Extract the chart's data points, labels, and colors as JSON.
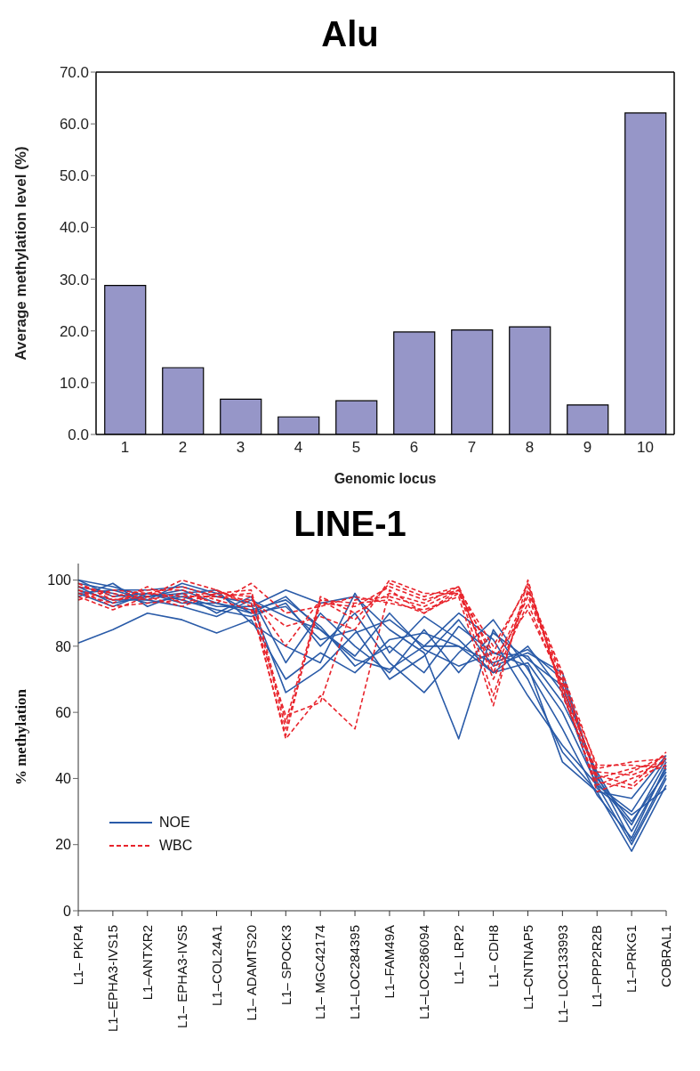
{
  "chart_data": [
    {
      "type": "bar",
      "title": "Alu",
      "xlabel": "Genomic locus",
      "ylabel": "Average methylation level (%)",
      "categories": [
        "1",
        "2",
        "3",
        "4",
        "5",
        "6",
        "7",
        "8",
        "9",
        "10"
      ],
      "values": [
        28.8,
        12.9,
        6.8,
        3.4,
        6.5,
        19.8,
        20.2,
        20.8,
        5.7,
        62.1
      ],
      "color": "#9696c8",
      "ylim": [
        0,
        70
      ],
      "yticks": [
        {
          "value": 0,
          "label": "0.0"
        },
        {
          "value": 10,
          "label": "10.0"
        },
        {
          "value": 20,
          "label": "20.0"
        },
        {
          "value": 30,
          "label": "30.0"
        },
        {
          "value": 40,
          "label": "40.0"
        },
        {
          "value": 50,
          "label": "50.0"
        },
        {
          "value": 60,
          "label": "60.0"
        },
        {
          "value": 70,
          "label": "70.0"
        }
      ]
    },
    {
      "type": "line",
      "title": "LINE-1",
      "ylabel": "% methylation",
      "categories": [
        "L1– PKP4",
        "L1–EPHA3-IVS15",
        "L1–ANTXR2",
        "L1– EPHA3-IVS5",
        "L1–COL24A1",
        "L1– ADAMTS20",
        "L1– SPOCK3",
        "L1– MGC42174",
        "L1–LOC284395",
        "L1–FAM49A",
        "L1–LOC286094",
        "L1– LRP2",
        "L1– CDH8",
        "L1–CNTNAP5",
        "L1– LOC133993",
        "L1–PPP2R2B",
        "L1–PRKG1",
        "COBRAL1"
      ],
      "ylim": [
        0,
        105
      ],
      "yticks": [
        0,
        20,
        40,
        60,
        80,
        100
      ],
      "legend": "bottom left",
      "series": [
        {
          "name": "NOE",
          "color": "#2a5ba8",
          "line_style": "solid",
          "values": [
            100,
            98,
            95,
            97,
            93,
            90,
            95,
            85,
            76,
            73,
            80,
            80,
            72,
            75,
            60,
            38,
            20,
            40
          ]
        },
        {
          "color": "#2a5ba8",
          "line_style": "solid",
          "values": [
            98,
            96,
            93,
            95,
            92,
            92,
            97,
            93,
            95,
            85,
            78,
            52,
            85,
            70,
            48,
            36,
            18,
            38
          ]
        },
        {
          "color": "#2a5ba8",
          "line_style": "solid",
          "values": [
            81,
            85,
            90,
            88,
            84,
            88,
            70,
            78,
            72,
            82,
            84,
            80,
            75,
            79,
            70,
            40,
            27,
            42
          ]
        },
        {
          "color": "#2a5ba8",
          "line_style": "solid",
          "values": [
            96,
            92,
            96,
            94,
            91,
            89,
            93,
            80,
            90,
            75,
            66,
            78,
            88,
            73,
            55,
            35,
            22,
            44
          ]
        },
        {
          "color": "#2a5ba8",
          "line_style": "solid",
          "values": [
            99,
            97,
            97,
            98,
            95,
            93,
            66,
            73,
            84,
            88,
            80,
            90,
            82,
            65,
            50,
            38,
            30,
            46
          ]
        },
        {
          "color": "#2a5ba8",
          "line_style": "solid",
          "values": [
            97,
            94,
            94,
            92,
            89,
            94,
            89,
            85,
            77,
            90,
            79,
            74,
            78,
            77,
            63,
            42,
            24,
            43
          ]
        },
        {
          "color": "#2a5ba8",
          "line_style": "solid",
          "values": [
            95,
            99,
            92,
            96,
            97,
            87,
            80,
            75,
            96,
            78,
            89,
            82,
            72,
            80,
            66,
            37,
            29,
            37
          ]
        },
        {
          "color": "#2a5ba8",
          "line_style": "solid",
          "values": [
            100,
            95,
            96,
            93,
            93,
            91,
            94,
            86,
            74,
            80,
            72,
            86,
            78,
            74,
            45,
            36,
            34,
            47
          ]
        },
        {
          "color": "#2a5ba8",
          "line_style": "solid",
          "values": [
            98,
            93,
            95,
            96,
            90,
            95,
            75,
            90,
            80,
            72,
            85,
            72,
            84,
            76,
            68,
            41,
            21,
            41
          ]
        },
        {
          "color": "#2a5ba8",
          "line_style": "solid",
          "values": [
            96,
            97,
            94,
            99,
            96,
            90,
            92,
            82,
            85,
            70,
            77,
            88,
            74,
            78,
            72,
            39,
            26,
            45
          ]
        },
        {
          "name": "WBC",
          "color": "#e8242c",
          "line_style": "dashed",
          "values": [
            97,
            94,
            96,
            95,
            95,
            96,
            55,
            93,
            92,
            98,
            94,
            97,
            72,
            95,
            70,
            40,
            43,
            45
          ]
        },
        {
          "color": "#e8242c",
          "line_style": "dashed",
          "values": [
            95,
            91,
            95,
            100,
            97,
            93,
            52,
            65,
            55,
            97,
            90,
            96,
            78,
            99,
            66,
            38,
            42,
            47
          ]
        },
        {
          "color": "#e8242c",
          "line_style": "dashed",
          "values": [
            99,
            95,
            97,
            97,
            94,
            91,
            59,
            63,
            94,
            95,
            92,
            97,
            65,
            97,
            72,
            43,
            45,
            46
          ]
        },
        {
          "color": "#e8242c",
          "line_style": "dashed",
          "values": [
            96,
            93,
            98,
            93,
            96,
            95,
            80,
            94,
            88,
            99,
            95,
            98,
            70,
            93,
            68,
            36,
            40,
            44
          ]
        },
        {
          "color": "#e8242c",
          "line_style": "dashed",
          "values": [
            98,
            96,
            94,
            96,
            93,
            99,
            90,
            92,
            95,
            93,
            91,
            95,
            62,
            100,
            65,
            41,
            38,
            48
          ]
        },
        {
          "color": "#e8242c",
          "line_style": "dashed",
          "values": [
            97,
            92,
            93,
            94,
            97,
            92,
            53,
            95,
            90,
            96,
            93,
            98,
            76,
            91,
            69,
            44,
            44,
            43
          ]
        },
        {
          "color": "#e8242c",
          "line_style": "dashed",
          "values": [
            94,
            97,
            96,
            98,
            95,
            94,
            86,
            89,
            85,
            100,
            96,
            96,
            74,
            96,
            71,
            39,
            37,
            46
          ]
        },
        {
          "color": "#e8242c",
          "line_style": "dashed",
          "values": [
            99,
            94,
            95,
            92,
            96,
            97,
            57,
            94,
            93,
            94,
            90,
            97,
            80,
            98,
            67,
            42,
            41,
            45
          ]
        }
      ]
    }
  ]
}
